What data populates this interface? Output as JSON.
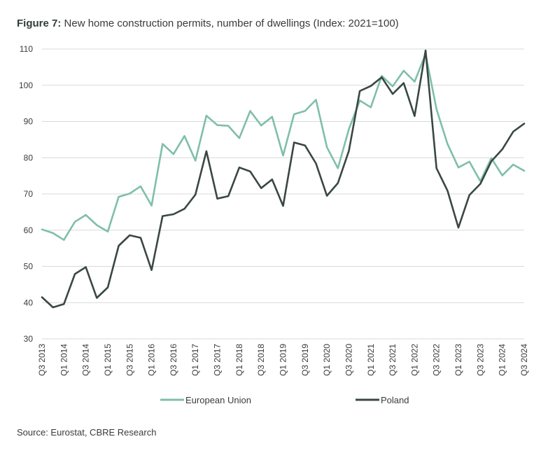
{
  "title_lead": "Figure 7:",
  "title_rest": "New home construction permits, number of dwellings (Index: 2021=100)",
  "source": "Source: Eurostat, CBRE Research",
  "colors": {
    "eu": "#7fbfa8",
    "poland": "#3a4745",
    "grid": "#d9d9d9"
  },
  "chart_data": {
    "type": "line",
    "title": "New home construction permits, number of dwellings (Index: 2021=100)",
    "xlabel": "",
    "ylabel": "",
    "ylim": [
      30,
      110
    ],
    "yticks": [
      30,
      40,
      50,
      60,
      70,
      80,
      90,
      100,
      110
    ],
    "grid": true,
    "legend_position": "bottom",
    "x_tick_labels": [
      "Q3 2013",
      "Q1 2014",
      "Q3 2014",
      "Q1 2015",
      "Q3 2015",
      "Q1 2016",
      "Q3 2016",
      "Q1 2017",
      "Q3 2017",
      "Q1 2018",
      "Q3 2018",
      "Q1 2019",
      "Q3 2019",
      "Q1 2020",
      "Q3 2020",
      "Q1 2021",
      "Q3 2021",
      "Q1 2022",
      "Q3 2022",
      "Q1 2023",
      "Q3 2023",
      "Q1 2024",
      "Q3 2024"
    ],
    "categories": [
      "Q3 2013",
      "Q4 2013",
      "Q1 2014",
      "Q2 2014",
      "Q3 2014",
      "Q4 2014",
      "Q1 2015",
      "Q2 2015",
      "Q3 2015",
      "Q4 2015",
      "Q1 2016",
      "Q2 2016",
      "Q3 2016",
      "Q4 2016",
      "Q1 2017",
      "Q2 2017",
      "Q3 2017",
      "Q4 2017",
      "Q1 2018",
      "Q2 2018",
      "Q3 2018",
      "Q4 2018",
      "Q1 2019",
      "Q2 2019",
      "Q3 2019",
      "Q4 2019",
      "Q1 2020",
      "Q2 2020",
      "Q3 2020",
      "Q4 2020",
      "Q1 2021",
      "Q2 2021",
      "Q3 2021",
      "Q4 2021",
      "Q1 2022",
      "Q2 2022",
      "Q3 2022",
      "Q4 2022",
      "Q1 2023",
      "Q2 2023",
      "Q3 2023",
      "Q4 2023",
      "Q1 2024",
      "Q2 2024",
      "Q3 2024"
    ],
    "series": [
      {
        "name": "European Union",
        "color": "#7fbfa8",
        "values": [
          60.2,
          59.2,
          57.3,
          62.3,
          64.2,
          61.4,
          59.6,
          69.2,
          70.1,
          72.1,
          66.8,
          83.8,
          81.0,
          86.0,
          79.2,
          91.6,
          89.0,
          88.8,
          85.4,
          92.9,
          88.9,
          91.3,
          80.6,
          92.0,
          92.9,
          96.0,
          82.9,
          77.1,
          87.9,
          95.8,
          93.9,
          102.6,
          99.7,
          104.0,
          101.0,
          108.6,
          93.4,
          83.8,
          77.3,
          78.9,
          73.5,
          79.9,
          75.1,
          78.1,
          76.4
        ]
      },
      {
        "name": "Poland",
        "color": "#3a4745",
        "values": [
          41.5,
          38.7,
          39.6,
          47.9,
          49.8,
          41.3,
          44.2,
          55.7,
          58.6,
          57.9,
          49.0,
          63.9,
          64.4,
          65.9,
          69.8,
          81.8,
          68.7,
          69.4,
          77.3,
          76.2,
          71.6,
          74.0,
          66.7,
          84.2,
          83.4,
          78.4,
          69.5,
          73.0,
          81.9,
          98.4,
          99.8,
          102.2,
          97.6,
          100.6,
          91.5,
          109.6,
          77.1,
          70.9,
          60.7,
          69.7,
          72.8,
          79.0,
          82.3,
          87.2,
          89.4
        ]
      }
    ]
  }
}
